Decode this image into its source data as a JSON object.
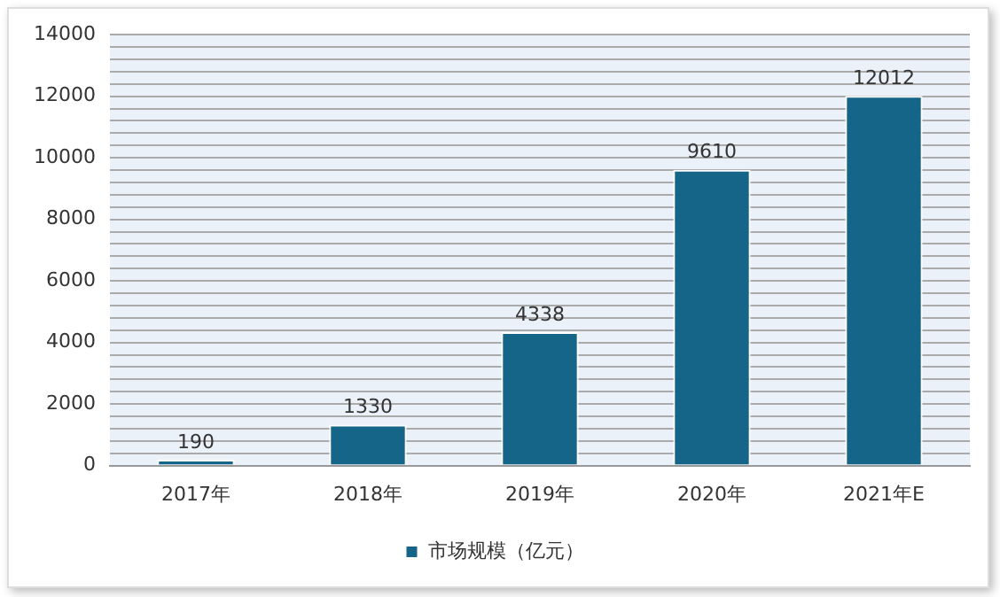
{
  "chart_data": {
    "type": "bar",
    "categories": [
      "2017年",
      "2018年",
      "2019年",
      "2020年",
      "2021年E"
    ],
    "series": [
      {
        "name": "市场规模（亿元）",
        "color": "#156589",
        "values": [
          190,
          1330,
          4338,
          9610,
          12012
        ]
      }
    ],
    "ylim": [
      0,
      14000
    ],
    "yticks": [
      0,
      {
        "value": 400,
        "label": null
      },
      {
        "value": 800,
        "label": null
      },
      {
        "value": 1200,
        "label": null
      },
      {
        "value": 1600,
        "label": null
      },
      2000,
      {
        "value": 2400,
        "label": null
      },
      {
        "value": 2800,
        "label": null
      },
      {
        "value": 3200,
        "label": null
      },
      {
        "value": 3600,
        "label": null
      },
      4000,
      {
        "value": 4400,
        "label": null
      },
      {
        "value": 4800,
        "label": null
      },
      {
        "value": 5200,
        "label": null
      },
      {
        "value": 5600,
        "label": null
      },
      6000,
      {
        "value": 6400,
        "label": null
      },
      {
        "value": 6800,
        "label": null
      },
      {
        "value": 7200,
        "label": null
      },
      {
        "value": 7600,
        "label": null
      },
      8000,
      {
        "value": 8400,
        "label": null
      },
      {
        "value": 8800,
        "label": null
      },
      {
        "value": 9200,
        "label": null
      },
      {
        "value": 9600,
        "label": null
      },
      10000,
      {
        "value": 10400,
        "label": null
      },
      {
        "value": 10800,
        "label": null
      },
      {
        "value": 11200,
        "label": null
      },
      {
        "value": 11600,
        "label": null
      },
      12000,
      {
        "value": 12400,
        "label": null
      },
      {
        "value": 12800,
        "label": null
      },
      {
        "value": 13200,
        "label": null
      },
      {
        "value": 13600,
        "label": null
      },
      14000
    ],
    "grid": "y",
    "legend": "bottom",
    "data_labels": true
  }
}
